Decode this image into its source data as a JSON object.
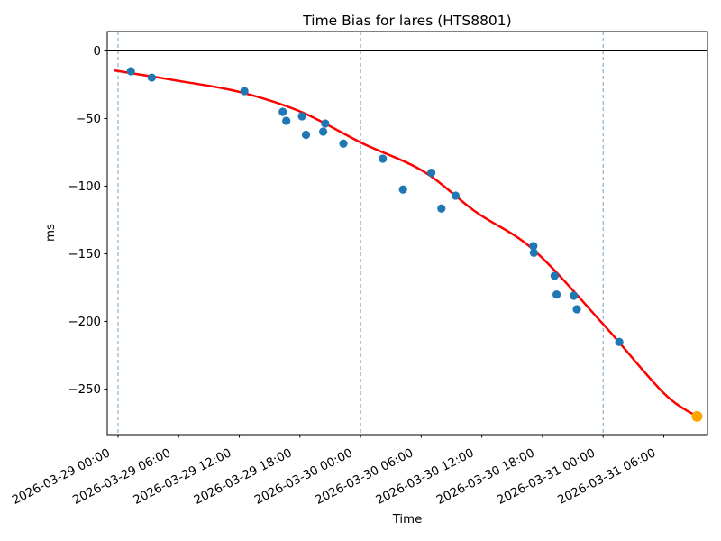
{
  "chart_data": {
    "type": "scatter",
    "title": "Time Bias for lares (HTS8801)",
    "xlabel": "Time",
    "ylabel": "ms",
    "x_tick_labels": [
      "2026-03-29 00:00",
      "2026-03-29 06:00",
      "2026-03-29 12:00",
      "2026-03-29 18:00",
      "2026-03-30 00:00",
      "2026-03-30 06:00",
      "2026-03-30 12:00",
      "2026-03-30 18:00",
      "2026-03-31 00:00",
      "2026-03-31 06:00"
    ],
    "y_ticks": [
      {
        "value": 0,
        "label": "0"
      },
      {
        "value": -50,
        "label": "−50"
      },
      {
        "value": -100,
        "label": "−100"
      },
      {
        "value": -150,
        "label": "−150"
      },
      {
        "value": -200,
        "label": "−200"
      },
      {
        "value": -250,
        "label": "−250"
      }
    ],
    "day_gridlines": [
      "2026-03-29 00:00",
      "2026-03-30 00:00",
      "2026-03-31 00:00"
    ],
    "zero_line_ms": 0,
    "x_range_hours_from_0329": [
      -1.07,
      58.33
    ],
    "y_range_ms": [
      -283.7,
      14.33
    ],
    "grid_on": false,
    "legend": "none",
    "colors": {
      "observations": "#1f77b4",
      "fit_curve": "#ff0000",
      "prediction": "#ffa500",
      "day_gridline": "#6299c5",
      "axis": "#000000"
    },
    "series": [
      {
        "name": "time-bias-observations",
        "type": "scatter",
        "color": "#1f77b4",
        "marker_radius": 4.6,
        "points": [
          {
            "time": "2026-03-29 01:16",
            "ms": -15.0
          },
          {
            "time": "2026-03-29 03:20",
            "ms": -19.7
          },
          {
            "time": "2026-03-29 12:30",
            "ms": -29.7
          },
          {
            "time": "2026-03-29 16:18",
            "ms": -45.0
          },
          {
            "time": "2026-03-29 16:39",
            "ms": -51.7
          },
          {
            "time": "2026-03-29 18:12",
            "ms": -48.3
          },
          {
            "time": "2026-03-29 18:36",
            "ms": -62.0
          },
          {
            "time": "2026-03-29 20:18",
            "ms": -59.7
          },
          {
            "time": "2026-03-29 20:30",
            "ms": -53.7
          },
          {
            "time": "2026-03-29 22:18",
            "ms": -68.5
          },
          {
            "time": "2026-03-30 02:12",
            "ms": -79.7
          },
          {
            "time": "2026-03-30 04:12",
            "ms": -102.5
          },
          {
            "time": "2026-03-30 07:00",
            "ms": -90.1
          },
          {
            "time": "2026-03-30 08:00",
            "ms": -116.5
          },
          {
            "time": "2026-03-30 09:24",
            "ms": -107.0
          },
          {
            "time": "2026-03-30 17:06",
            "ms": -144.3
          },
          {
            "time": "2026-03-30 17:09",
            "ms": -149.3
          },
          {
            "time": "2026-03-30 19:12",
            "ms": -166.3
          },
          {
            "time": "2026-03-30 19:24",
            "ms": -180.1
          },
          {
            "time": "2026-03-30 21:06",
            "ms": -181.0
          },
          {
            "time": "2026-03-30 21:24",
            "ms": -191.0
          },
          {
            "time": "2026-03-31 01:36",
            "ms": -215.2
          }
        ]
      },
      {
        "name": "fit-curve",
        "type": "line",
        "color": "#ff0000",
        "line_width": 2.5,
        "points": [
          {
            "time": "2026-03-28 23:42",
            "ms": -14.5
          },
          {
            "time": "2026-03-29 06:06",
            "ms": -22.3
          },
          {
            "time": "2026-03-29 12:00",
            "ms": -30.3
          },
          {
            "time": "2026-03-29 18:06",
            "ms": -45.0
          },
          {
            "time": "2026-03-30 00:06",
            "ms": -68.0
          },
          {
            "time": "2026-03-30 06:12",
            "ms": -89.0
          },
          {
            "time": "2026-03-30 11:24",
            "ms": -119.0
          },
          {
            "time": "2026-03-30 17:06",
            "ms": -147.0
          },
          {
            "time": "2026-03-31 00:00",
            "ms": -202.0
          },
          {
            "time": "2026-03-31 06:00",
            "ms": -253.0
          },
          {
            "time": "2026-03-31 09:18",
            "ms": -270.3
          }
        ]
      },
      {
        "name": "predicted-point",
        "type": "scatter",
        "color": "#ffa500",
        "marker_radius": 6,
        "points": [
          {
            "time": "2026-03-31 09:18",
            "ms": -270.3
          }
        ]
      }
    ]
  }
}
